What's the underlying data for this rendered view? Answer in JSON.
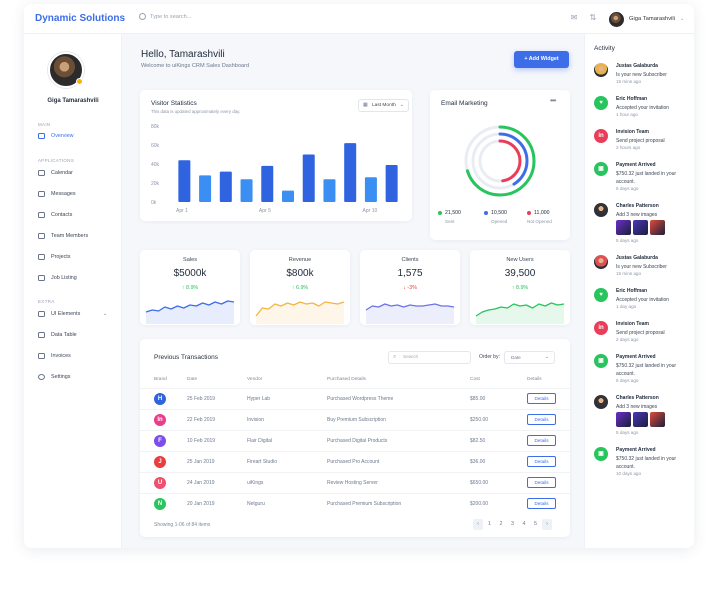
{
  "app": {
    "name": "Dynamic Solutions"
  },
  "header": {
    "search_placeholder": "Type to search...",
    "user_name": "Giga Tamarashvili"
  },
  "sidebar": {
    "user_name": "Giga Tamarashvili",
    "sections": [
      "MAIN",
      "APPLICATIONS",
      "EXTRA"
    ],
    "items": [
      {
        "label": "Overview"
      },
      {
        "label": "Calendar"
      },
      {
        "label": "Messages"
      },
      {
        "label": "Contacts"
      },
      {
        "label": "Team Members"
      },
      {
        "label": "Projects"
      },
      {
        "label": "Job Listing"
      },
      {
        "label": "UI Elements"
      },
      {
        "label": "Data Table"
      },
      {
        "label": "Invoices"
      },
      {
        "label": "Settings"
      }
    ]
  },
  "main": {
    "greeting": "Hello, Tamarashvili",
    "welcome": "Welcome to uiKings CRM Sales Dashboard",
    "add_widget": "+ Add Widget"
  },
  "visitor": {
    "title": "Visitor Statistics",
    "subtitle": "This data is updated approximately every day.",
    "period": "Last Month"
  },
  "chart_data": {
    "type": "bar",
    "y_ticks": [
      "80k",
      "60k",
      "40k",
      "20k",
      "0k"
    ],
    "x_labels": [
      "Apr 1",
      "Apr 5",
      "Apr 10"
    ],
    "ylim": [
      0,
      80
    ],
    "values": [
      44,
      28,
      32,
      24,
      38,
      12,
      50,
      24,
      62,
      26,
      39
    ],
    "colors": [
      "#2f63df",
      "#3b8ef2"
    ]
  },
  "email": {
    "title": "Email Marketing",
    "legend": [
      {
        "value": "21,500",
        "label": "Sent",
        "color": "#28c45d"
      },
      {
        "value": "10,500",
        "label": "Opened",
        "color": "#3d6ee8"
      },
      {
        "value": "11,000",
        "label": "Not Opened",
        "color": "#ea3d5a"
      }
    ]
  },
  "stats": [
    {
      "label": "Sales",
      "value": "$5000k",
      "change": "↑ 8.9%",
      "dir": "up",
      "color": "#3d6ee8"
    },
    {
      "label": "Revenue",
      "value": "$800k",
      "change": "↑ 6.9%",
      "dir": "up",
      "color": "#f3b544"
    },
    {
      "label": "Clients",
      "value": "1,575",
      "change": "↓ -3%",
      "dir": "down",
      "color": "#6b73e6"
    },
    {
      "label": "New Users",
      "value": "39,500",
      "change": "↑ 8.9%",
      "dir": "up",
      "color": "#28c45d"
    }
  ],
  "transactions": {
    "title": "Previous Transactions",
    "search_placeholder": "Search",
    "order_label": "Order by:",
    "order_value": "Date",
    "columns": [
      "Brand",
      "Date",
      "Vendor",
      "Purchased Details",
      "Cost",
      "Details"
    ],
    "rows": [
      {
        "icon": "H",
        "color": "#2f63df",
        "date": "25 Feb 2019",
        "vendor": "Hyper Lab",
        "details": "Purchased Wordpress Theme",
        "cost": "$85.00",
        "button": "Details"
      },
      {
        "icon": "In",
        "color": "#ea3d8a",
        "date": "22 Feb 2019",
        "vendor": "Invision",
        "details": "Buy Premium Subscription",
        "cost": "$250.00",
        "button": "Details"
      },
      {
        "icon": "F",
        "color": "#7c4de8",
        "date": "10 Feb 2019",
        "vendor": "Flair Digital",
        "details": "Purchased Digital Products",
        "cost": "$82.50",
        "button": "Details"
      },
      {
        "icon": "J",
        "color": "#ea3d3d",
        "date": "25 Jan 2019",
        "vendor": "Fireart Studio",
        "details": "Purchased Pro Account",
        "cost": "$36.00",
        "button": "Details"
      },
      {
        "icon": "U",
        "color": "#f0506e",
        "date": "24 Jan 2019",
        "vendor": "uiKings",
        "details": "Review Hosting Server",
        "cost": "$650.00",
        "button": "Details"
      },
      {
        "icon": "N",
        "color": "#28c45d",
        "date": "20 Jan 2019",
        "vendor": "Netguru",
        "details": "Purchased Premium Subscription",
        "cost": "$200.00",
        "button": "Details"
      }
    ],
    "showing": "Showing 1-06 of 84 items",
    "pages": [
      "‹",
      "1",
      "2",
      "3",
      "4",
      "5",
      "›"
    ]
  },
  "activity": {
    "title": "Activity",
    "items": [
      {
        "name": "Justas Galaburda",
        "text": "Is your new Subscriber",
        "time": "15 mins ago",
        "type": "avatar",
        "color": "#e8b24a"
      },
      {
        "name": "Eric Hoffman",
        "text": "Accepted your invitation",
        "time": "1 hour ago",
        "type": "heart",
        "color": "#28c45d",
        "glyph": "♥"
      },
      {
        "name": "Invision Team",
        "text": "Send project proposal",
        "time": "2 hours ago",
        "type": "brand",
        "color": "#ea3d5a",
        "glyph": "in"
      },
      {
        "name": "Payment Arrived",
        "text": "$750.32 just landed in your account.",
        "time": "5 days ago",
        "type": "wallet",
        "color": "#28c45d",
        "glyph": "▣"
      },
      {
        "name": "Charles Patterson",
        "text": "Add 3 new images",
        "time": "5 days ago",
        "type": "avatar",
        "color": "#333"
      },
      {
        "name": "Justas Galaburda",
        "text": "Is your new Subscriber",
        "time": "15 mins ago",
        "type": "avatar",
        "color": "#e05050"
      },
      {
        "name": "Eric Hoffman",
        "text": "Accepted your invitation",
        "time": "1 day ago",
        "type": "heart",
        "color": "#28c45d",
        "glyph": "♥"
      },
      {
        "name": "Invision Team",
        "text": "Send project proposal",
        "time": "2 days ago",
        "type": "brand",
        "color": "#ea3d5a",
        "glyph": "in"
      },
      {
        "name": "Payment Arrived",
        "text": "$750.32 just landed in your account.",
        "time": "5 days ago",
        "type": "wallet",
        "color": "#28c45d",
        "glyph": "▣"
      },
      {
        "name": "Charles Patterson",
        "text": "Add 3 new images",
        "time": "5 days ago",
        "type": "avatar",
        "color": "#333"
      },
      {
        "name": "Payment Arrived",
        "text": "$750.32 just landed in your account.",
        "time": "10 days ago",
        "type": "wallet",
        "color": "#28c45d",
        "glyph": "▣"
      }
    ]
  }
}
